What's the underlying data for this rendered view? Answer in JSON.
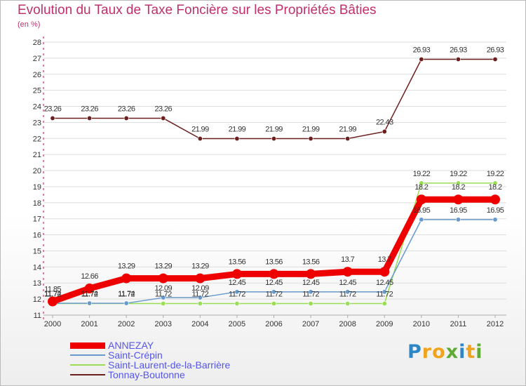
{
  "chart_data": {
    "type": "line",
    "title": "Evolution du Taux de Taxe Foncière sur les Propriétés Bâties",
    "ylabel": "(en %)",
    "xlabel": "",
    "categories": [
      "2000",
      "2001",
      "2002",
      "2003",
      "2004",
      "2005",
      "2006",
      "2007",
      "2008",
      "2009",
      "2010",
      "2011",
      "2012"
    ],
    "ylim": [
      11,
      28
    ],
    "yticks": [
      "11",
      "12",
      "13",
      "14",
      "15",
      "16",
      "17",
      "18",
      "19",
      "20",
      "21",
      "22",
      "23",
      "24",
      "25",
      "26",
      "27",
      "28"
    ],
    "series": [
      {
        "name": "Tonnay-Boutonne",
        "color": "#6b1f1f",
        "values": [
          23.26,
          23.26,
          23.26,
          23.26,
          21.99,
          21.99,
          21.99,
          21.99,
          21.99,
          22.43,
          26.93,
          26.93,
          26.93
        ],
        "labels": [
          "23.26",
          "23.26",
          "23.26",
          "23.26",
          "21.99",
          "21.99",
          "21.99",
          "21.99",
          "21.99",
          "22.43",
          "26.93",
          "26.93",
          "26.93"
        ]
      },
      {
        "name": "Saint-Laurent-de-la-Barrière",
        "color": "#99dd55",
        "values": [
          11.72,
          11.72,
          11.72,
          11.72,
          11.72,
          11.72,
          11.72,
          11.72,
          11.72,
          11.72,
          19.22,
          19.22,
          19.22
        ],
        "labels": [
          "11.72",
          "11.72",
          "11.72",
          "11.72",
          "11.72",
          "11.72",
          "11.72",
          "11.72",
          "11.72",
          "11.72",
          "19.22",
          "19.22",
          "19.22"
        ]
      },
      {
        "name": "Saint-Crépin",
        "color": "#6699cc",
        "values": [
          11.74,
          11.74,
          11.74,
          12.09,
          12.09,
          12.45,
          12.45,
          12.45,
          12.45,
          12.45,
          16.95,
          16.95,
          16.95
        ],
        "labels": [
          "11.74",
          "11.74",
          "11.74",
          "12.09",
          "12.09",
          "12.45",
          "12.45",
          "12.45",
          "12.45",
          "12.45",
          "16.95",
          "16.95",
          "16.95"
        ]
      },
      {
        "name": "ANNEZAY",
        "color": "#ee0000",
        "values": [
          11.85,
          12.66,
          13.29,
          13.29,
          13.29,
          13.56,
          13.56,
          13.56,
          13.7,
          13.7,
          18.2,
          18.2,
          18.2
        ],
        "labels": [
          "11.85",
          "12.66",
          "13.29",
          "13.29",
          "13.29",
          "13.56",
          "13.56",
          "13.56",
          "13.7",
          "13.7",
          "18.2",
          "18.2",
          "18.2"
        ]
      }
    ]
  },
  "legend": {
    "items": [
      {
        "label": "ANNEZAY",
        "color": "#ee0000"
      },
      {
        "label": "Saint-Crépin",
        "color": "#6699cc"
      },
      {
        "label": "Saint-Laurent-de-la-Barrière",
        "color": "#99dd55"
      },
      {
        "label": "Tonnay-Boutonne",
        "color": "#6b1f1f"
      }
    ]
  },
  "logo": {
    "letters": [
      "P",
      "r",
      "o",
      "x",
      "i",
      "t",
      "i"
    ],
    "colors": [
      "#2f86c7",
      "#f0a31c",
      "#f0a31c",
      "#5dab32",
      "#2f86c7",
      "#f0a31c",
      "#5dab32"
    ]
  }
}
